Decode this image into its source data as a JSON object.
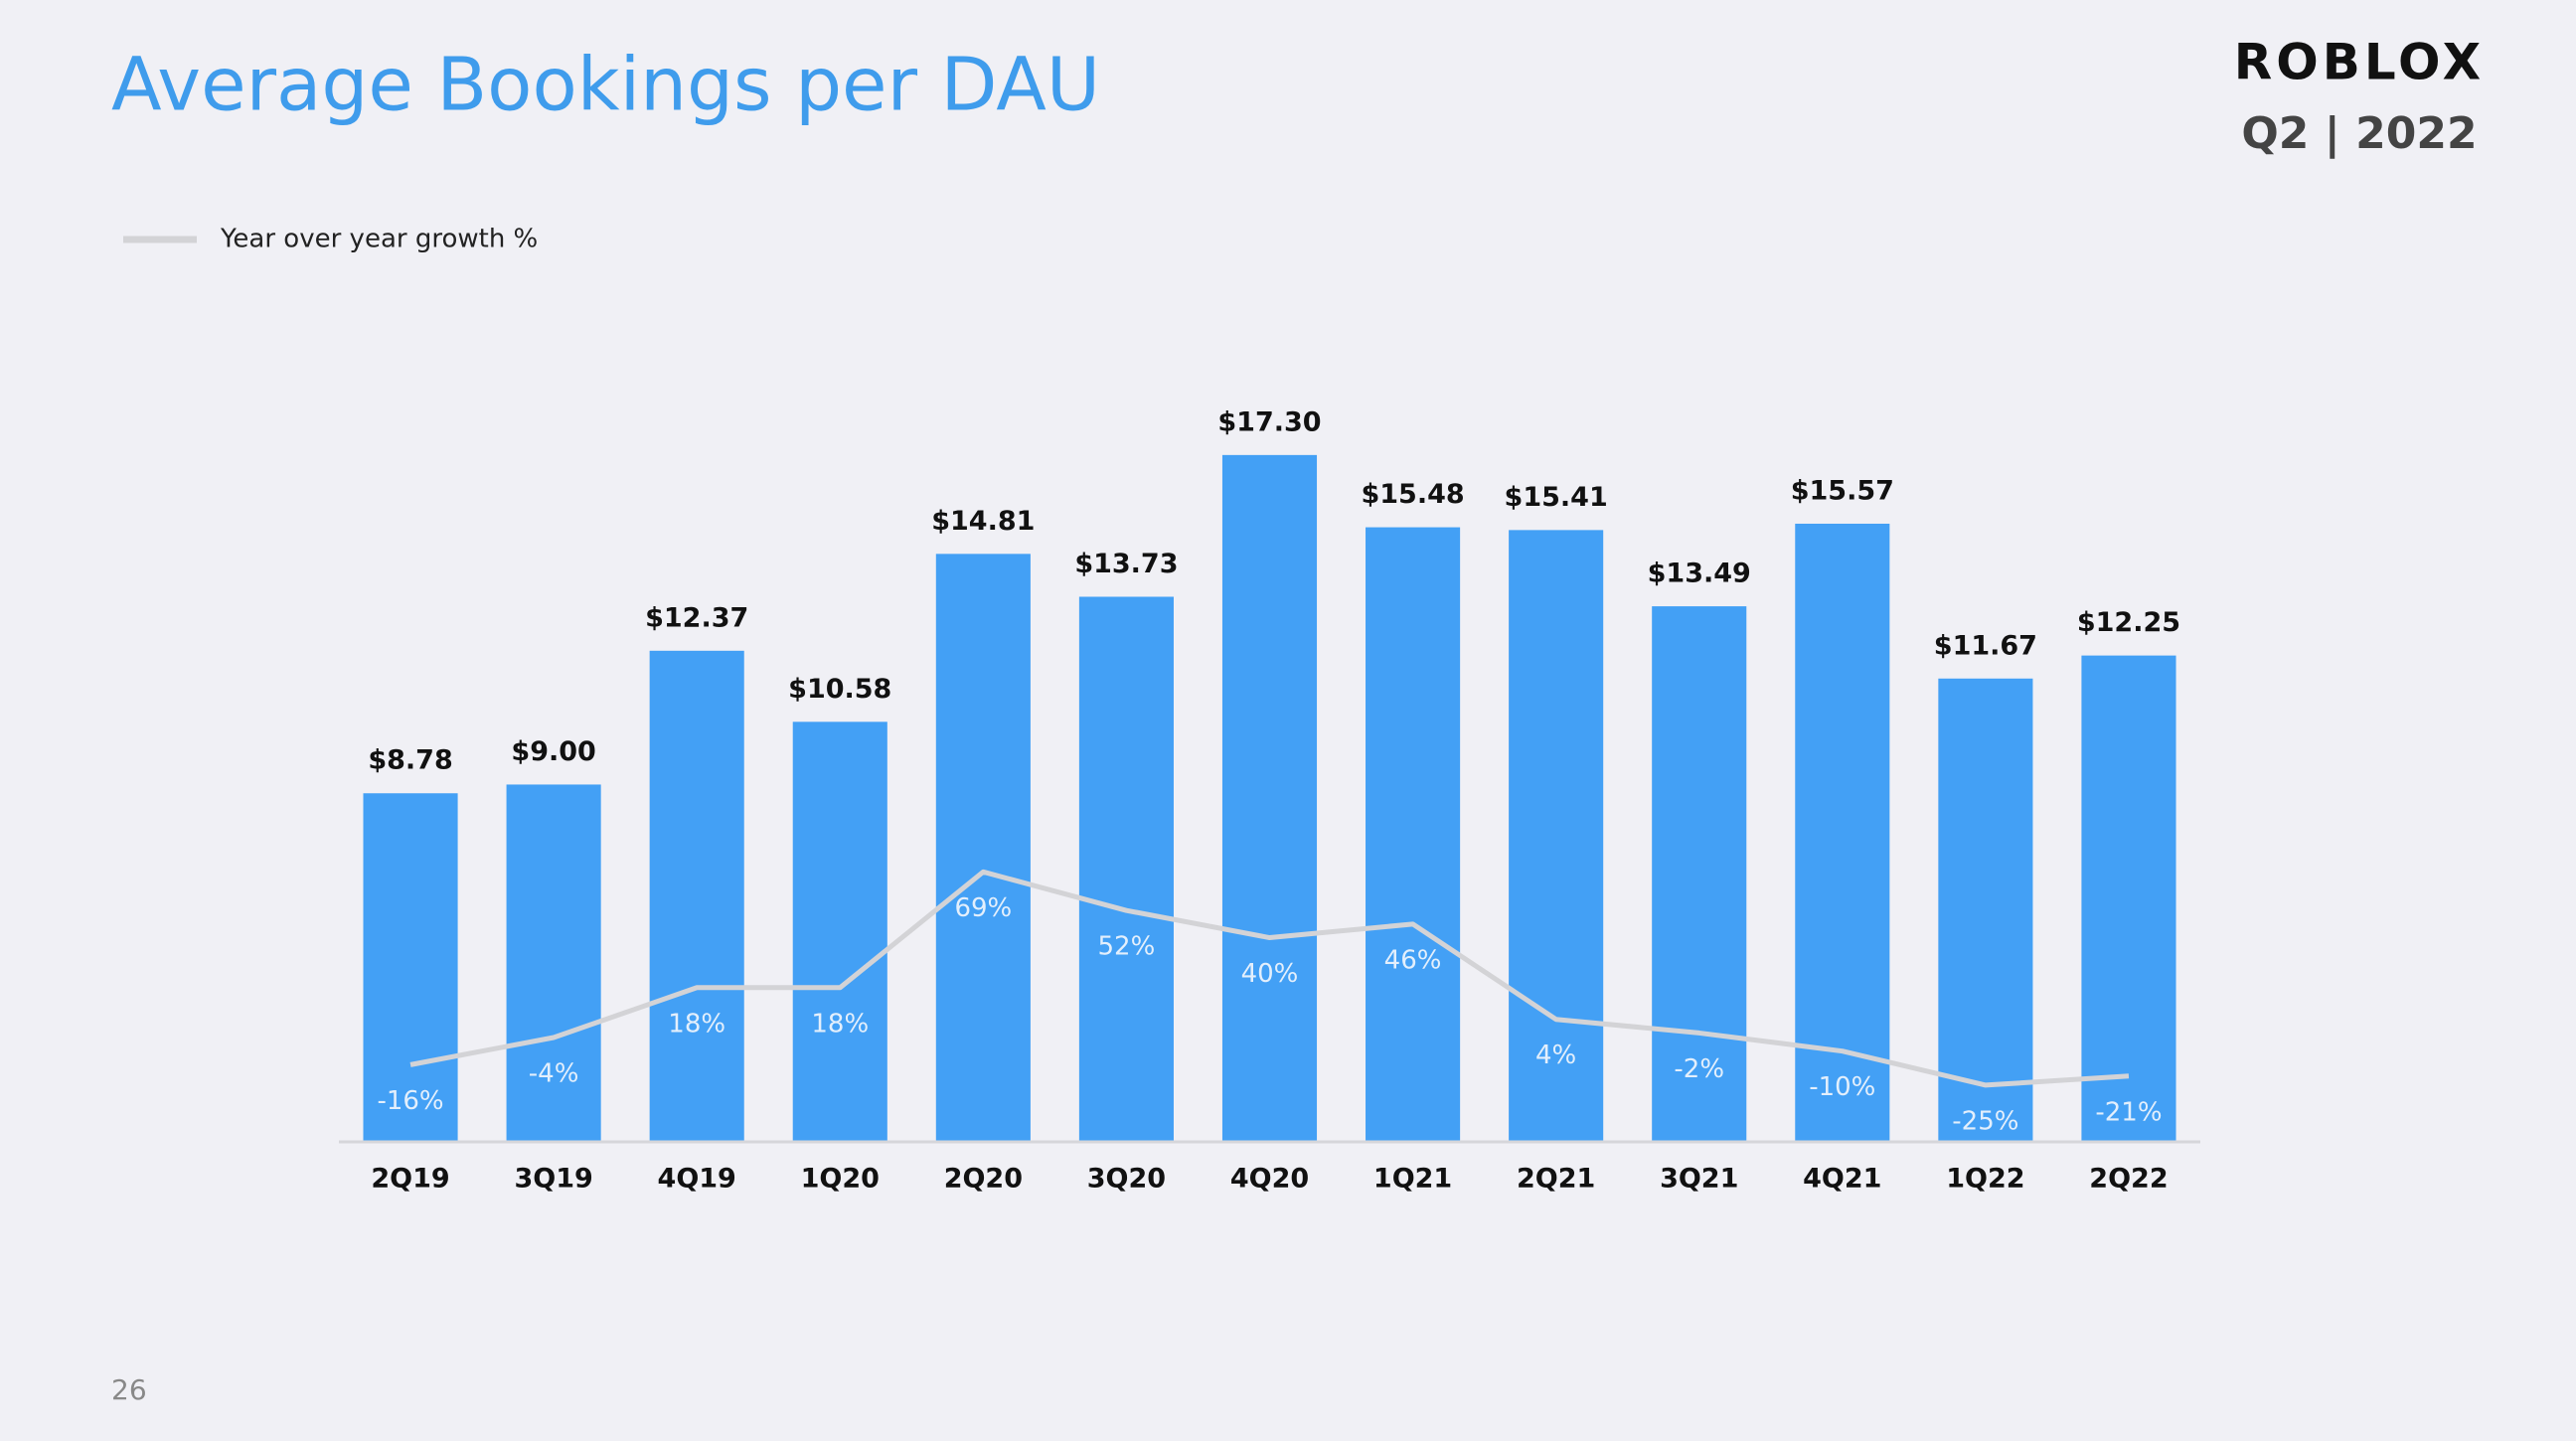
{
  "logo": "ROBLOX",
  "period": "Q2 | 2022",
  "page_number": 26,
  "chart_data": {
    "type": "bar",
    "title": "Average Bookings per DAU",
    "categories": [
      "2Q19",
      "3Q19",
      "4Q19",
      "1Q20",
      "2Q20",
      "3Q20",
      "4Q20",
      "1Q21",
      "2Q21",
      "3Q21",
      "4Q21",
      "1Q22",
      "2Q22"
    ],
    "values": [
      8.78,
      9.0,
      12.37,
      10.58,
      14.81,
      13.73,
      17.3,
      15.48,
      15.41,
      13.49,
      15.57,
      11.67,
      12.25
    ],
    "value_labels": [
      "$8.78",
      "$9.00",
      "$12.37",
      "$10.58",
      "$14.81",
      "$13.73",
      "$17.30",
      "$15.48",
      "$15.41",
      "$13.49",
      "$15.57",
      "$11.67",
      "$12.25"
    ],
    "color": "#43a0f5",
    "ylim": [
      0,
      20
    ],
    "y2lim": [
      -50,
      300
    ],
    "legend": "top-left",
    "series": [
      {
        "name": "Year over year growth %",
        "type": "line",
        "axis": "y2",
        "color": "#d3d3d6",
        "values": [
          -16,
          -4,
          18,
          18,
          69,
          52,
          40,
          46,
          4,
          -2,
          -10,
          -25,
          -21
        ],
        "value_labels": [
          "-16%",
          "-4%",
          "18%",
          "18%",
          "69%",
          "52%",
          "40%",
          "46%",
          "4%",
          "-2%",
          "-10%",
          "-25%",
          "-21%"
        ]
      }
    ]
  }
}
